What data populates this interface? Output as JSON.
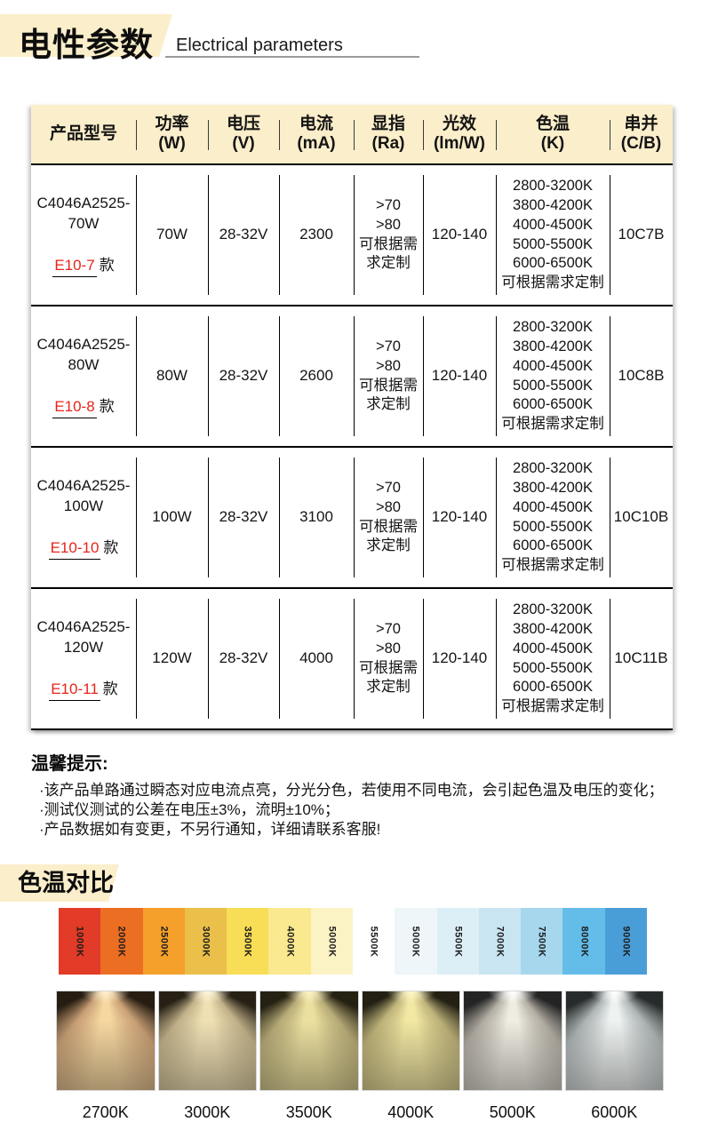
{
  "header": {
    "title_cn": "电性参数",
    "title_en": "Electrical parameters"
  },
  "colors": {
    "accent_band": "#fbeeca",
    "highlight_red": "#e8231a"
  },
  "table": {
    "headers": [
      "产品型号",
      "功率\n(W)",
      "电压\n(V)",
      "电流\n(mA)",
      "显指\n(Ra)",
      "光效\n(lm/W)",
      "色温\n(K)",
      "串并\n(C/B)"
    ],
    "rows": [
      {
        "model": "C4046A2525-\n70W",
        "edition": "E10-7",
        "edition_suffix": "款",
        "power": "70W",
        "voltage": "28-32V",
        "current": "2300",
        "cri": ">70\n>80\n可根据需\n求定制",
        "efficacy": "120-140",
        "cct": "2800-3200K\n3800-4200K\n4000-4500K\n5000-5500K\n6000-6500K\n可根据需求定制",
        "circuit": "10C7B"
      },
      {
        "model": "C4046A2525-\n80W",
        "edition": "E10-8",
        "edition_suffix": "款",
        "power": "80W",
        "voltage": "28-32V",
        "current": "2600",
        "cri": ">70\n>80\n可根据需\n求定制",
        "efficacy": "120-140",
        "cct": "2800-3200K\n3800-4200K\n4000-4500K\n5000-5500K\n6000-6500K\n可根据需求定制",
        "circuit": "10C8B"
      },
      {
        "model": "C4046A2525-\n100W",
        "edition": "E10-10",
        "edition_suffix": "款",
        "power": "100W",
        "voltage": "28-32V",
        "current": "3100",
        "cri": ">70\n>80\n可根据需\n求定制",
        "efficacy": "120-140",
        "cct": "2800-3200K\n3800-4200K\n4000-4500K\n5000-5500K\n6000-6500K\n可根据需求定制",
        "circuit": "10C10B"
      },
      {
        "model": "C4046A2525-\n120W",
        "edition": "E10-11",
        "edition_suffix": "款",
        "power": "120W",
        "voltage": "28-32V",
        "current": "4000",
        "cri": ">70\n>80\n可根据需\n求定制",
        "efficacy": "120-140",
        "cct": "2800-3200K\n3800-4200K\n4000-4500K\n5000-5500K\n6000-6500K\n可根据需求定制",
        "circuit": "10C11B"
      }
    ]
  },
  "tips": {
    "title": "温馨提示:",
    "lines": [
      "·该产品单路通过瞬态对应电流点亮，分光分色，若使用不同电流，会引起色温及电压的变化；",
      "·测试仪测试的公差在电压±3%，流明±10%；",
      "·产品数据如有变更，不另行通知，详细请联系客服!"
    ]
  },
  "cct_compare": {
    "title": "色温对比",
    "scale": [
      {
        "label": "1000K",
        "color": "#e23b27"
      },
      {
        "label": "2000K",
        "color": "#ec6e22"
      },
      {
        "label": "2500K",
        "color": "#f5a02b"
      },
      {
        "label": "3000K",
        "color": "#eac04b"
      },
      {
        "label": "3500K",
        "color": "#f8dd56"
      },
      {
        "label": "4000K",
        "color": "#fae98e"
      },
      {
        "label": "5000K",
        "color": "#fcf3c5"
      },
      {
        "label": "5500K",
        "color": "#ffffff"
      },
      {
        "label": "5000K",
        "color": "#eef6f9"
      },
      {
        "label": "5500K",
        "color": "#ddeff6"
      },
      {
        "label": "7000K",
        "color": "#c8e5f1"
      },
      {
        "label": "7500K",
        "color": "#a6d7ed"
      },
      {
        "label": "8000K",
        "color": "#63bde8"
      },
      {
        "label": "9000K",
        "color": "#4a9ed7"
      }
    ],
    "beams": [
      {
        "label": "2700K",
        "glow": "#fff0cf",
        "bright": "#f6d7a0",
        "mid": "#c9a076",
        "dark": "#261c11"
      },
      {
        "label": "3000K",
        "glow": "#fdf4da",
        "bright": "#efe0b4",
        "mid": "#c2b28a",
        "dark": "#262015"
      },
      {
        "label": "3500K",
        "glow": "#fcf3c8",
        "bright": "#ece0a0",
        "mid": "#b7ab77",
        "dark": "#242012"
      },
      {
        "label": "4000K",
        "glow": "#fdf6c9",
        "bright": "#f2e7a3",
        "mid": "#bdb279",
        "dark": "#232013"
      },
      {
        "label": "5000K",
        "glow": "#ffffff",
        "bright": "#efece2",
        "mid": "#b3aea4",
        "dark": "#242424"
      },
      {
        "label": "6000K",
        "glow": "#ffffff",
        "bright": "#eef2f1",
        "mid": "#aeb5b5",
        "dark": "#272b2b"
      }
    ]
  }
}
